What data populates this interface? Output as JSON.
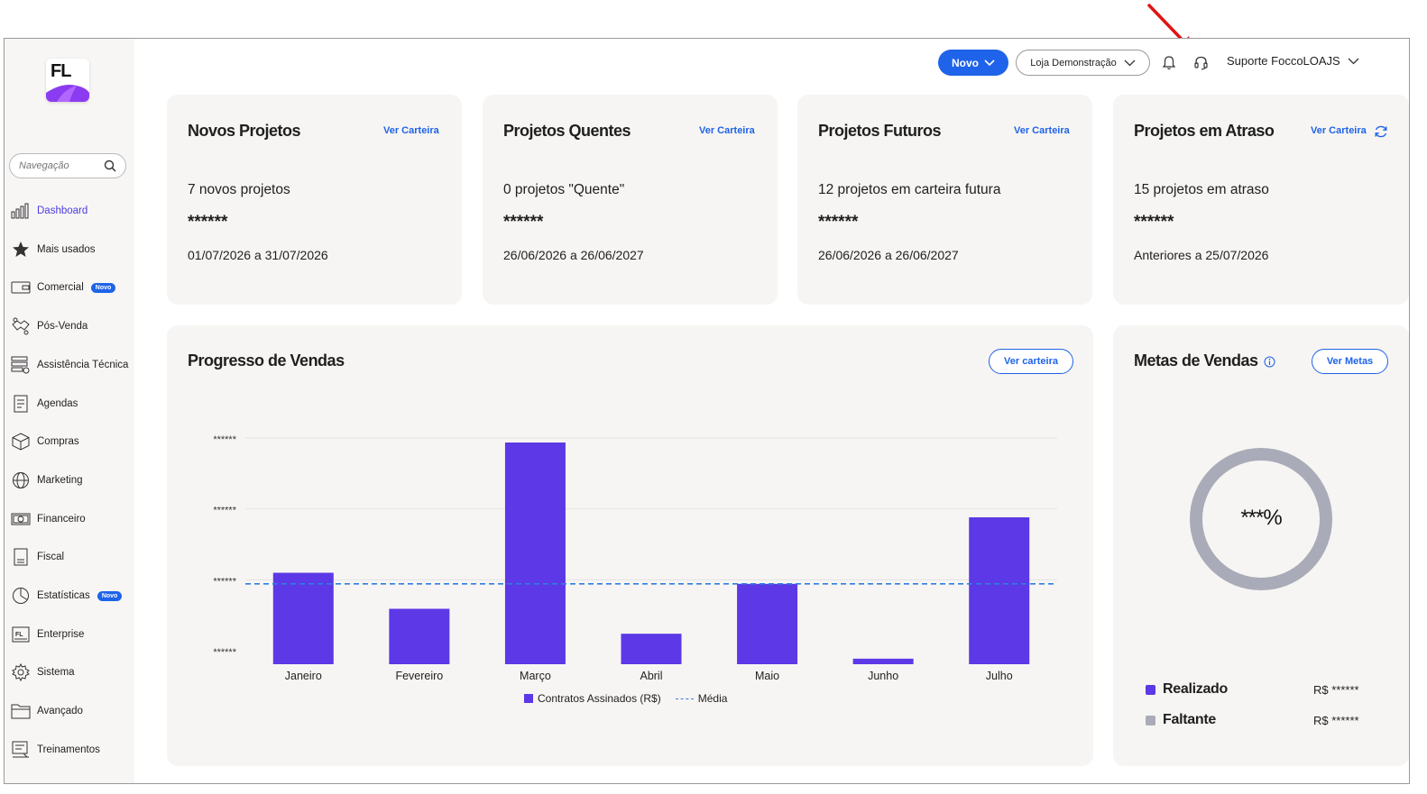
{
  "sidebar": {
    "logo_text": "FL",
    "search_placeholder": "Navegação",
    "items": [
      {
        "label": "Dashboard",
        "icon": "chart-bars-icon",
        "active": true
      },
      {
        "label": "Mais usados",
        "icon": "star-icon"
      },
      {
        "label": "Comercial",
        "icon": "wallet-icon",
        "badge": "Novo"
      },
      {
        "label": "Pós-Venda",
        "icon": "handshake-icon"
      },
      {
        "label": "Assistência Técnica",
        "icon": "server-gear-icon"
      },
      {
        "label": "Agendas",
        "icon": "agenda-icon"
      },
      {
        "label": "Compras",
        "icon": "box-icon"
      },
      {
        "label": "Marketing",
        "icon": "globe-icon"
      },
      {
        "label": "Financeiro",
        "icon": "money-icon"
      },
      {
        "label": "Fiscal",
        "icon": "document-icon"
      },
      {
        "label": "Estatísticas",
        "icon": "pie-chart-icon",
        "badge": "Novo"
      },
      {
        "label": "Enterprise",
        "icon": "enterprise-logo-icon"
      },
      {
        "label": "Sistema",
        "icon": "gear-icon"
      },
      {
        "label": "Avançado",
        "icon": "folder-icon"
      },
      {
        "label": "Treinamentos",
        "icon": "training-icon"
      }
    ]
  },
  "topbar": {
    "novo_label": "Novo",
    "loja_label": "Loja Demonstração",
    "user_label": "Suporte FoccoLOAJS"
  },
  "cards": [
    {
      "title": "Novos Projetos",
      "link": "Ver Carteira",
      "count": "7 novos projetos",
      "mask": "******",
      "range": "01/07/2026 a 31/07/2026"
    },
    {
      "title": "Projetos Quentes",
      "link": "Ver Carteira",
      "count": "0 projetos \"Quente\"",
      "mask": "******",
      "range": "26/06/2026 a 26/06/2027"
    },
    {
      "title": "Projetos Futuros",
      "link": "Ver Carteira",
      "count": "12 projetos em carteira futura",
      "mask": "******",
      "range": "26/06/2026 a 26/06/2027"
    },
    {
      "title": "Projetos em Atraso",
      "link": "Ver Carteira",
      "count": "15 projetos em atraso",
      "mask": "******",
      "range": "Anteriores a 25/07/2026"
    }
  ],
  "sales_progress": {
    "title": "Progresso de Vendas",
    "button": "Ver carteira"
  },
  "chart_data": {
    "type": "bar",
    "title": "Progresso de Vendas",
    "categories": [
      "Janeiro",
      "Fevereiro",
      "Março",
      "Abril",
      "Maio",
      "Junho",
      "Julho"
    ],
    "series": [
      {
        "name": "Contratos Assinados (R$)",
        "values": [
          33,
          20,
          80,
          11,
          29,
          2,
          53
        ]
      },
      {
        "name": "Média",
        "type": "line",
        "values": [
          29,
          29,
          29,
          29,
          29,
          29,
          29
        ]
      }
    ],
    "y_ticks": [
      "******",
      "******",
      "******",
      "******"
    ],
    "ylim": [
      0,
      80
    ],
    "grid": true,
    "legend": "bottom",
    "colors": {
      "bars": "#5c38e6",
      "average": "#2f7de1"
    }
  },
  "sales_goals": {
    "title": "Metas de Vendas",
    "button": "Ver Metas",
    "percent": "***%",
    "rows": [
      {
        "name": "Realizado",
        "value": "R$ ******",
        "color": "#5c38e6"
      },
      {
        "name": "Faltante",
        "value": "R$ ******",
        "color": "#a9abb8"
      }
    ]
  }
}
